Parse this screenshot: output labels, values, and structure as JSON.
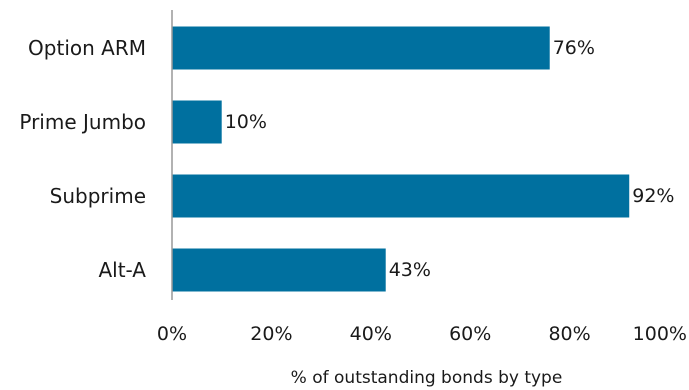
{
  "chart_data": {
    "type": "bar",
    "orientation": "horizontal",
    "categories": [
      "Option ARM",
      "Prime Jumbo",
      "Subprime",
      "Alt-A"
    ],
    "values": [
      76,
      10,
      92,
      43
    ],
    "data_labels": [
      "76%",
      "10%",
      "92%",
      "43%"
    ],
    "xlabel": "% of outstanding bonds by type",
    "xlim": [
      0,
      100
    ],
    "x_ticks": [
      0,
      20,
      40,
      60,
      80,
      100
    ],
    "x_tick_labels": [
      "0%",
      "20%",
      "40%",
      "60%",
      "80%",
      "100%"
    ],
    "grid": false,
    "legend": "none",
    "bar_color": "#00709f"
  }
}
